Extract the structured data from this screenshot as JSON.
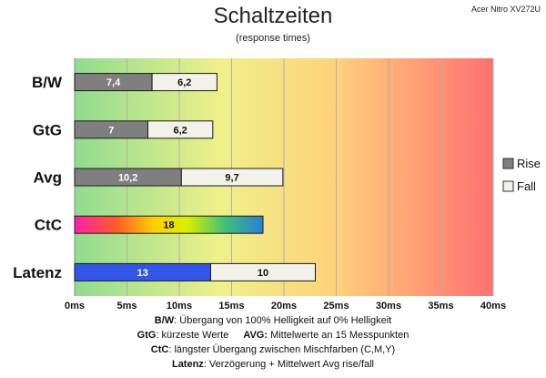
{
  "header": {
    "title": "Schaltzeiten",
    "subtitle": "(response times)",
    "monitor": "Acer Nitro XV272U"
  },
  "chart_data": {
    "type": "bar",
    "orientation": "horizontal",
    "stacked": true,
    "categories": [
      "B/W",
      "GtG",
      "Avg",
      "CtC",
      "Latenz"
    ],
    "series": [
      {
        "name": "Rise",
        "color": "#7f7f7f",
        "values": [
          7.4,
          7,
          10.2,
          18,
          13
        ]
      },
      {
        "name": "Fall",
        "color": "#f2f2ea",
        "values": [
          6.2,
          6.2,
          9.7,
          null,
          10
        ]
      }
    ],
    "special_colors": {
      "CtC": "rainbow",
      "Latenz": "#3355e8"
    },
    "data_labels": [
      [
        "7,4",
        "6,2"
      ],
      [
        "7",
        "6,2"
      ],
      [
        "10,2",
        "9,7"
      ],
      [
        "18",
        ""
      ],
      [
        "13",
        "10"
      ]
    ],
    "xlim": [
      0,
      40
    ],
    "x_ticks": [
      0,
      5,
      10,
      15,
      20,
      25,
      30,
      35,
      40
    ],
    "x_tick_labels": [
      "0ms",
      "5ms",
      "10ms",
      "15ms",
      "20ms",
      "25ms",
      "30ms",
      "35ms",
      "40ms"
    ],
    "grid": true,
    "legend": "right",
    "background_gradient": [
      "#8fdc8f",
      "#f0f08a",
      "#ffd27a",
      "#ff7070"
    ]
  },
  "notes": {
    "bw_key": "B/W",
    "bw_text": ":  Übergang von 100% Helligkeit auf 0% Helligkeit",
    "gtg_key": "GtG",
    "gtg_text": ": kürzeste  Werte",
    "avg_key": "AVG:",
    "avg_text": " Mittelwerte  an 15 Messpunkten",
    "ctc_key": "CtC",
    "ctc_text": ": längster Übergang  zwischen Mischfarben (C,M,Y)",
    "latenz_key": "Latenz",
    "latenz_text": ": Verzögerung  + Mittelwert  Avg rise/fall"
  }
}
